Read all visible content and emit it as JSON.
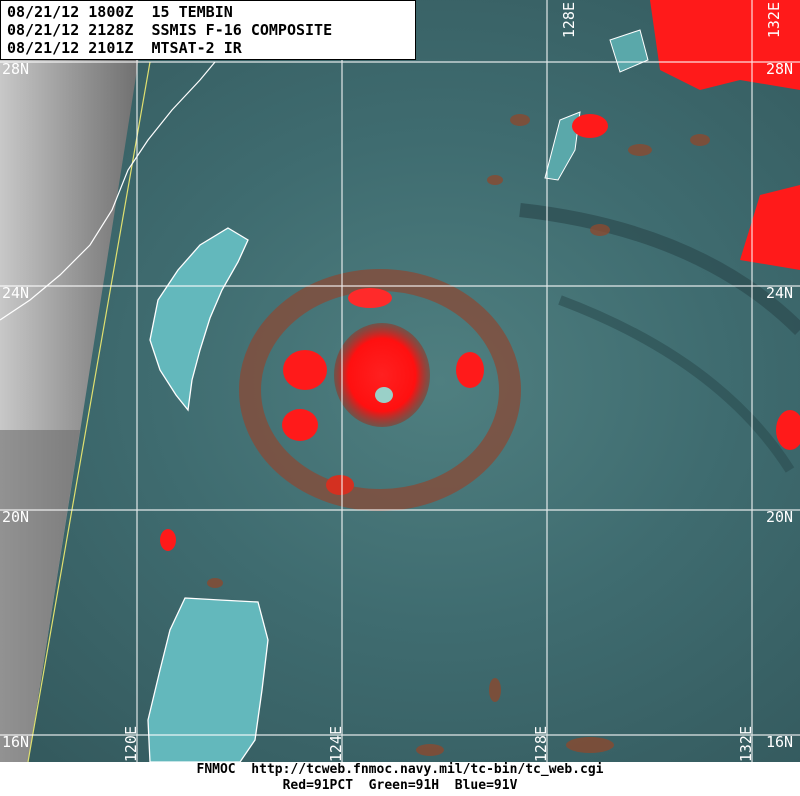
{
  "header": {
    "line1": "08/21/12 1800Z  15 TEMBIN",
    "line2": "08/21/12 2128Z  SSMIS F-16 COMPOSITE",
    "line3": "08/21/12 2101Z  MTSAT-2 IR"
  },
  "grid_labels": {
    "lat_28_left": "28N",
    "lat_24_left": "24N",
    "lat_20_left": "20N",
    "lat_16_left": "16N",
    "lat_28_right": "28N",
    "lat_24_right": "24N",
    "lat_20_right": "20N",
    "lat_16_right": "16N",
    "lon_128_top": "128E",
    "lon_132_top": "132E",
    "lon_120_bottom": "120E",
    "lon_124_bottom": "124E",
    "lon_128_bottom": "128E",
    "lon_132_bottom": "132E"
  },
  "footer": {
    "line1": "FNMOC  http://tcweb.fnmoc.navy.mil/tc-bin/tc_web.cgi",
    "line2": "Red=91PCT  Green=91H  Blue=91V"
  },
  "colors": {
    "ocean": "#3f6c70",
    "convection": "#ff1a1a",
    "land": "#5fb6b9",
    "ir_cloud": "#9a9a9a"
  }
}
